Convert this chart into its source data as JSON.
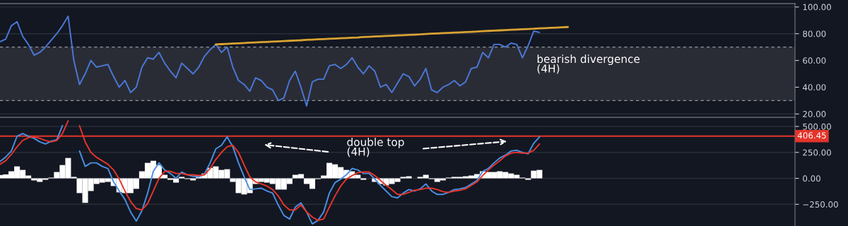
{
  "chart_data": [
    {
      "type": "line",
      "categories": [
        null,
        null,
        null,
        null,
        null,
        null,
        null,
        null,
        null,
        null,
        null,
        null,
        null,
        null,
        null,
        null,
        null,
        null,
        null,
        null,
        null,
        null,
        null,
        null,
        null,
        null,
        null,
        null,
        null,
        null,
        null,
        null,
        null,
        null,
        null,
        null,
        null,
        null,
        null,
        null,
        null,
        null,
        null,
        null,
        null,
        null,
        null,
        null,
        null,
        null,
        null,
        null,
        null,
        null,
        null,
        null,
        null,
        null,
        null,
        null,
        null,
        null,
        null,
        null,
        null,
        null,
        null,
        null,
        null,
        null,
        null,
        null,
        null,
        null,
        null,
        null,
        null,
        null,
        null,
        null,
        null,
        null,
        null,
        null,
        null,
        null,
        null,
        null,
        null,
        null,
        null,
        null,
        null,
        null,
        null,
        null,
        null,
        null,
        null,
        null,
        null,
        null,
        null,
        null,
        null,
        null,
        null,
        null,
        null,
        null,
        null,
        null,
        null,
        null,
        null,
        null,
        null,
        null,
        null,
        null,
        null,
        null,
        null,
        null,
        null,
        null,
        null,
        null,
        null,
        null,
        null,
        null,
        null,
        null,
        null,
        null,
        null,
        null,
        null,
        null,
        null
      ],
      "series": [
        {
          "color": "#4a78d6",
          "values": [
            74,
            76,
            86,
            89,
            78,
            72,
            64,
            66,
            70,
            75,
            80,
            86,
            93,
            60,
            42,
            50,
            60,
            55,
            56,
            57,
            48,
            40,
            45,
            36,
            40,
            55,
            62,
            61,
            66,
            58,
            52,
            47,
            58,
            54,
            50,
            55,
            63,
            68,
            72,
            66,
            70,
            55,
            45,
            42,
            37,
            47,
            45,
            40,
            38,
            30,
            32,
            45,
            52,
            40,
            26,
            44,
            46,
            46,
            56,
            57,
            54,
            57,
            62,
            55,
            50,
            56,
            52,
            40,
            42,
            36,
            43,
            50,
            48,
            41,
            46,
            54,
            38,
            36,
            40,
            42,
            45,
            41,
            44,
            54,
            55,
            66,
            62,
            72,
            72,
            70,
            73,
            72,
            62,
            71,
            82,
            81,
            null,
            null,
            null,
            null,
            null,
            null,
            null,
            null,
            null,
            null,
            null,
            null,
            null,
            null,
            null,
            null,
            null,
            null,
            null,
            null,
            null,
            null,
            null,
            null,
            null,
            null,
            null,
            null,
            null,
            null,
            null,
            null,
            null,
            null,
            null,
            null,
            null,
            null,
            null,
            null,
            null,
            null,
            null,
            null,
            null
          ]
        },
        {
          "color": "#d9a332",
          "values": [
            null,
            null,
            null,
            null,
            null,
            null,
            null,
            null,
            null,
            null,
            null,
            null,
            null,
            null,
            null,
            null,
            null,
            null,
            null,
            null,
            null,
            null,
            null,
            null,
            null,
            null,
            null,
            null,
            null,
            null,
            null,
            null,
            null,
            null,
            null,
            null,
            null,
            null,
            72.0,
            72.2,
            72.4,
            72.6,
            72.8,
            73.0,
            73.3,
            73.5,
            73.7,
            73.9,
            74.1,
            74.3,
            74.5,
            74.7,
            74.9,
            75.1,
            75.4,
            75.6,
            75.8,
            76.0,
            76.2,
            76.4,
            76.6,
            76.8,
            77.0,
            77.2,
            77.5,
            77.7,
            77.9,
            78.1,
            78.3,
            78.5,
            78.7,
            78.9,
            79.1,
            79.3,
            79.5,
            79.8,
            80.0,
            80.2,
            80.4,
            80.6,
            80.8,
            81.0,
            81.2,
            81.4,
            81.6,
            81.9,
            82.1,
            82.3,
            82.5,
            82.7,
            82.9,
            83.1,
            83.3,
            83.5,
            83.7,
            84.0,
            84.2,
            84.4,
            84.6,
            84.8,
            85.0,
            null,
            null,
            null,
            null,
            null,
            null,
            null,
            null,
            null,
            null,
            null,
            null,
            null,
            null,
            null,
            null,
            null,
            null,
            null,
            null,
            null,
            null,
            null,
            null,
            null,
            null,
            null,
            null,
            null,
            null,
            null,
            null,
            null,
            null,
            null,
            null,
            null,
            null,
            null,
            null
          ]
        }
      ],
      "bands": [
        {
          "axis": "y",
          "from": 30,
          "to": 70,
          "color": "#2a2c35"
        }
      ],
      "ref_lines": [
        {
          "axis": "y",
          "value": 30,
          "color": "#9598a1",
          "line_style": "dashed"
        },
        {
          "axis": "y",
          "value": 70,
          "color": "#9598a1",
          "line_style": "dashed"
        }
      ],
      "ylim": [
        18,
        102.5
      ],
      "yticks": [
        {
          "value": 20,
          "label": "20.00"
        },
        {
          "value": 40,
          "label": "40.00"
        },
        {
          "value": 60,
          "label": "60.00"
        },
        {
          "value": 80,
          "label": "80.00"
        },
        {
          "value": 100,
          "label": "100.00"
        }
      ],
      "grid": "y",
      "legend": false,
      "tick_labels": "y",
      "annotations": [
        "bearish divergence\n(4H)"
      ]
    },
    {
      "type": "line",
      "categories": [
        null,
        null,
        null,
        null,
        null,
        null,
        null,
        null,
        null,
        null,
        null,
        null,
        null,
        null,
        null,
        null,
        null,
        null,
        null,
        null,
        null,
        null,
        null,
        null,
        null,
        null,
        null,
        null,
        null,
        null,
        null,
        null,
        null,
        null,
        null,
        null,
        null,
        null,
        null,
        null,
        null,
        null,
        null,
        null,
        null,
        null,
        null,
        null,
        null,
        null,
        null,
        null,
        null,
        null,
        null,
        null,
        null,
        null,
        null,
        null,
        null,
        null,
        null,
        null,
        null,
        null,
        null,
        null,
        null,
        null,
        null,
        null,
        null,
        null,
        null,
        null,
        null,
        null,
        null,
        null,
        null,
        null,
        null,
        null,
        null,
        null,
        null,
        null,
        null,
        null,
        null,
        null,
        null,
        null,
        null,
        null,
        null,
        null,
        null,
        null,
        null,
        null,
        null,
        null,
        null,
        null,
        null,
        null,
        null,
        null,
        null,
        null,
        null,
        null,
        null,
        null,
        null,
        null,
        null,
        null,
        null,
        null,
        null,
        null,
        null,
        null,
        null,
        null,
        null,
        null,
        null,
        null,
        null,
        null,
        null,
        null,
        null,
        null,
        null,
        null,
        null
      ],
      "series": [
        {
          "type": "bar",
          "color": "#ffffff",
          "values": [
            32,
            38,
            68,
            115,
            81,
            27,
            -20,
            -34,
            -14,
            7,
            61,
            128,
            196,
            14,
            -142,
            -236,
            -122,
            -54,
            -41,
            -34,
            -74,
            -135,
            -142,
            -142,
            -101,
            68,
            149,
            169,
            128,
            34,
            -14,
            -41,
            14,
            -7,
            -20,
            27,
            47,
            101,
            115,
            81,
            88,
            -34,
            -142,
            -155,
            -142,
            -54,
            -34,
            -41,
            -54,
            -108,
            -108,
            -54,
            34,
            41,
            -54,
            -101,
            -7,
            27,
            149,
            135,
            108,
            81,
            68,
            34,
            -14,
            0,
            -34,
            -54,
            -68,
            -54,
            -34,
            14,
            20,
            0,
            14,
            34,
            -7,
            -34,
            -20,
            7,
            14,
            14,
            20,
            27,
            41,
            68,
            61,
            61,
            68,
            61,
            47,
            34,
            7,
            -14,
            74,
            81,
            null,
            null,
            null,
            null,
            null,
            null,
            null,
            null,
            null,
            null,
            null,
            null,
            null,
            null,
            null,
            null,
            null,
            null,
            null,
            null,
            null,
            null,
            null,
            null,
            null,
            null,
            null,
            null,
            null,
            null,
            null,
            null,
            null,
            null,
            null,
            null,
            null,
            null,
            null,
            null,
            null,
            null,
            null,
            null,
            null
          ]
        },
        {
          "color": "#4a90e2",
          "values": [
            162,
            205,
            263,
            405,
            432,
            405,
            385,
            351,
            331,
            358,
            372,
            507,
            null,
            null,
            263,
            115,
            149,
            149,
            115,
            95,
            -34,
            -122,
            -203,
            -324,
            -412,
            -311,
            -142,
            68,
            149,
            81,
            47,
            0,
            61,
            34,
            20,
            14,
            41,
            149,
            284,
            318,
            399,
            304,
            149,
            14,
            -108,
            -101,
            -95,
            -122,
            -142,
            -257,
            -358,
            -392,
            -277,
            -236,
            -324,
            -439,
            -405,
            -324,
            -142,
            -41,
            -7,
            34,
            95,
            81,
            47,
            47,
            -7,
            -68,
            -122,
            -176,
            -189,
            -142,
            -108,
            -122,
            -101,
            -54,
            -122,
            -155,
            -155,
            -135,
            -108,
            -101,
            -88,
            -54,
            -20,
            68,
            95,
            149,
            196,
            223,
            263,
            270,
            250,
            236,
            338,
            399,
            null,
            null,
            null,
            null,
            null,
            null,
            null,
            null,
            null,
            null,
            null,
            null,
            null,
            null,
            null,
            null,
            null,
            null,
            null,
            null,
            null,
            null,
            null,
            null,
            null,
            null,
            null,
            null,
            null,
            null,
            null,
            null,
            null,
            null,
            null,
            null,
            null,
            null,
            null,
            null,
            null,
            null,
            null,
            null,
            null
          ]
        },
        {
          "color": "#e5352b",
          "values": [
            135,
            169,
            230,
            304,
            365,
            392,
            399,
            385,
            365,
            351,
            365,
            432,
            554,
            null,
            507,
            351,
            250,
            203,
            169,
            135,
            81,
            -7,
            -122,
            -223,
            -291,
            -304,
            -243,
            -122,
            0,
            68,
            68,
            47,
            47,
            34,
            34,
            27,
            34,
            95,
            182,
            250,
            304,
            318,
            250,
            128,
            14,
            -34,
            -54,
            -74,
            -108,
            -169,
            -257,
            -304,
            -304,
            -257,
            -324,
            -372,
            -405,
            -392,
            -277,
            -169,
            -74,
            -7,
            27,
            54,
            61,
            61,
            27,
            -20,
            -68,
            -108,
            -155,
            -155,
            -135,
            -115,
            -108,
            -95,
            -95,
            -108,
            -128,
            -135,
            -122,
            -115,
            -101,
            -68,
            -34,
            27,
            81,
            128,
            169,
            216,
            243,
            250,
            243,
            243,
            270,
            331,
            null,
            null,
            null,
            null,
            null,
            null,
            null,
            null,
            null,
            null,
            null,
            null,
            null,
            null,
            null,
            null,
            null,
            null,
            null,
            null,
            null,
            null,
            null,
            null,
            null,
            null,
            null,
            null,
            null,
            null,
            null,
            null,
            null,
            null,
            null,
            null,
            null,
            null,
            null,
            null,
            null,
            null,
            null,
            null,
            null
          ]
        }
      ],
      "ref_lines": [
        {
          "axis": "y",
          "value": 406.45,
          "label": "406.45",
          "color": "#e5352b",
          "line_style": "solid"
        }
      ],
      "ylim": [
        -459,
        588
      ],
      "yticks": [
        {
          "value": -250,
          "label": "−250.00"
        },
        {
          "value": 0,
          "label": "0.00"
        },
        {
          "value": 250,
          "label": "250.00"
        },
        {
          "value": 500,
          "label": "500.00"
        }
      ],
      "grid": "y",
      "legend": false,
      "tick_labels": "y",
      "annotations": [
        "double top\n(4H)"
      ]
    }
  ]
}
